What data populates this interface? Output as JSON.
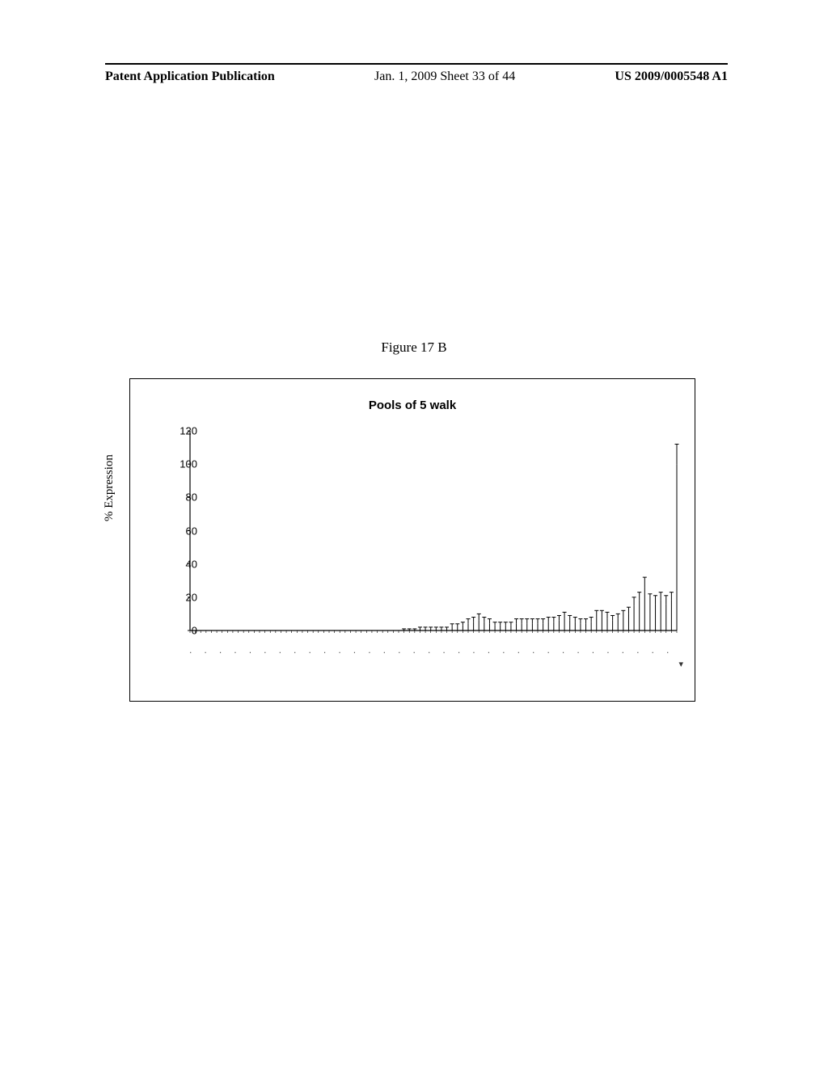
{
  "header": {
    "left": "Patent Application Publication",
    "center": "Jan. 1, 2009  Sheet 33 of 44",
    "right": "US 2009/0005548 A1"
  },
  "figure": {
    "caption": "Figure 17 B",
    "chart": {
      "type": "bar-with-error",
      "title": "Pools of 5 walk",
      "ylabel": "% Expression",
      "ylim": [
        0,
        120
      ],
      "ytick_step": 20,
      "yticks": [
        0,
        20,
        40,
        60,
        80,
        100,
        120
      ],
      "background_color": "#ffffff",
      "axis_color": "#000000",
      "marker_color": "#000000",
      "label_fontsize": 13,
      "title_fontsize": 15,
      "n_points": 92,
      "values": [
        0,
        0,
        0,
        0,
        0,
        0,
        0,
        0,
        0,
        0,
        0,
        0,
        0,
        0,
        0,
        0,
        0,
        0,
        0,
        0,
        0,
        0,
        0,
        0,
        0,
        0,
        0,
        0,
        0,
        0,
        0,
        0,
        0,
        0,
        0,
        0,
        0,
        0,
        0,
        0,
        0,
        0,
        0,
        1,
        1,
        1,
        1,
        1,
        1,
        2,
        2,
        3,
        4,
        5,
        6,
        5,
        4,
        3,
        3,
        3,
        3,
        4,
        4,
        4,
        4,
        4,
        4,
        5,
        5,
        6,
        7,
        6,
        5,
        4,
        4,
        5,
        8,
        8,
        7,
        6,
        7,
        8,
        10,
        15,
        18,
        26,
        17,
        16,
        18,
        16,
        18,
        100
      ],
      "errors": [
        0,
        0,
        0,
        0,
        0,
        0,
        0,
        0,
        0,
        0,
        0,
        0,
        0,
        0,
        0,
        0,
        0,
        0,
        0,
        0,
        0,
        0,
        0,
        0,
        0,
        0,
        0,
        0,
        0,
        0,
        0,
        0,
        0,
        0,
        0,
        0,
        0,
        0,
        0,
        0,
        1,
        1,
        1,
        1,
        1,
        1,
        1,
        1,
        1,
        2,
        2,
        2,
        3,
        3,
        4,
        3,
        3,
        2,
        2,
        2,
        2,
        3,
        3,
        3,
        3,
        3,
        3,
        3,
        3,
        3,
        4,
        3,
        3,
        3,
        3,
        3,
        4,
        4,
        4,
        3,
        3,
        4,
        4,
        5,
        5,
        6,
        5,
        5,
        5,
        5,
        5,
        12
      ]
    }
  }
}
